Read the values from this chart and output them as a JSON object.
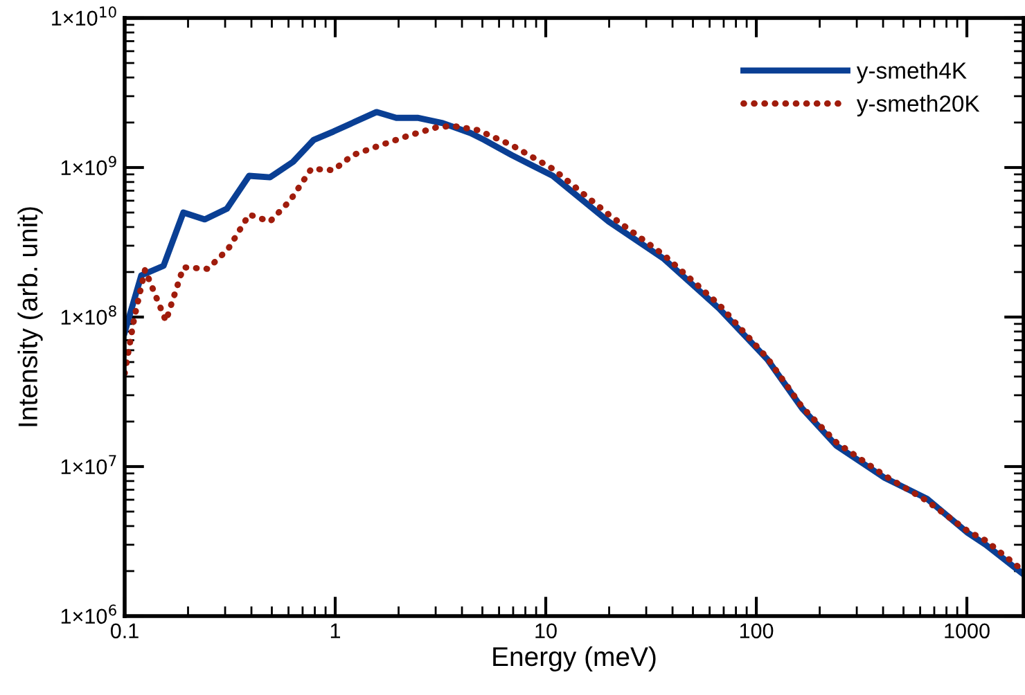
{
  "chart_data": {
    "type": "line",
    "xlabel": "Energy (meV)",
    "ylabel": "Intensity (arb. unit)",
    "log": "xy",
    "xlim": [
      0.1,
      1860
    ],
    "ylim": [
      1000000,
      10000000000
    ],
    "xticks": [
      0.1,
      1,
      10,
      100,
      1000
    ],
    "yticks": [
      {
        "value": 1000000,
        "label": "1×10$^{6}$"
      },
      {
        "value": 10000000,
        "label": "1×10$^{7}$"
      },
      {
        "value": 100000000,
        "label": "1×10$^{8}$"
      },
      {
        "value": 1000000000,
        "label": "1×10$^{9}$"
      },
      {
        "value": 10000000000,
        "label": "1×10$^{10}$"
      }
    ],
    "grid": false,
    "legend": "top right",
    "marker": "none",
    "series": [
      {
        "name": "y-smeth4K",
        "color": "#0a3f94",
        "line_style": "solid",
        "x": [
          0.1,
          0.12,
          0.153,
          0.19,
          0.24,
          0.306,
          0.39,
          0.49,
          0.63,
          0.79,
          0.98,
          1.57,
          1.95,
          2.46,
          3.24,
          4.4,
          5.1,
          6.9,
          10.8,
          19.9,
          36.4,
          66.6,
          113,
          165,
          240,
          407,
          646,
          1010,
          1230,
          1860
        ],
        "values": [
          79000000,
          190000000,
          220000000,
          500000000,
          450000000,
          530000000,
          880000000,
          860000000,
          1090000000,
          1530000000,
          1740000000,
          2350000000,
          2150000000,
          2150000000,
          1980000000,
          1700000000,
          1530000000,
          1210000000,
          880000000,
          435000000,
          245000000,
          114000000,
          52000000,
          24500000,
          13800000,
          8400000,
          6100000,
          3600000,
          3000000,
          1900000
        ]
      },
      {
        "name": "y-smeth20K",
        "color": "#a01c0c",
        "line_style": "dotted",
        "x": [
          0.1,
          0.111,
          0.125,
          0.157,
          0.19,
          0.248,
          0.31,
          0.39,
          0.49,
          0.61,
          0.77,
          0.98,
          1.21,
          1.57,
          2.22,
          3.0,
          3.6,
          4.75,
          6.9,
          10.8,
          19.9,
          36.4,
          66.6,
          113,
          165,
          240,
          407,
          646,
          1010,
          1230,
          1860
        ],
        "values": [
          42000000,
          98000000,
          207000000,
          94000000,
          215000000,
          210000000,
          285000000,
          485000000,
          435000000,
          600000000,
          980000000,
          960000000,
          1210000000,
          1380000000,
          1630000000,
          1850000000,
          1900000000,
          1780000000,
          1410000000,
          980000000,
          485000000,
          260000000,
          121000000,
          53000000,
          25000000,
          14500000,
          8700000,
          5900000,
          3700000,
          3200000,
          2000000
        ]
      }
    ]
  }
}
